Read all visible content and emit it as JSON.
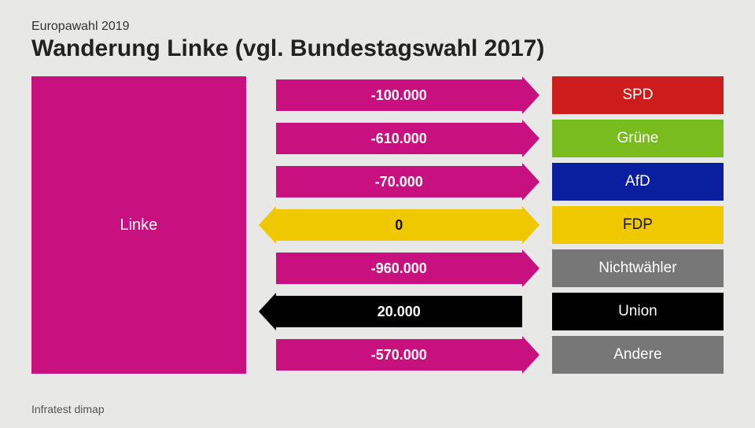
{
  "header": {
    "subtitle": "Europawahl 2019",
    "title": "Wanderung Linke (vgl. Bundestagswahl 2017)"
  },
  "credit": "Infratest dimap",
  "source": {
    "label": "Linke",
    "color": "#c9107f"
  },
  "flows": [
    {
      "value": -100000,
      "label": "-100.000",
      "arrow_color": "#c9107f",
      "text_color": "#ffffff",
      "target": {
        "label": "SPD",
        "color": "#cc1c1c",
        "text_color": "#ffffff"
      }
    },
    {
      "value": -610000,
      "label": "-610.000",
      "arrow_color": "#c9107f",
      "text_color": "#ffffff",
      "target": {
        "label": "Grüne",
        "color": "#78bc1e",
        "text_color": "#ffffff"
      }
    },
    {
      "value": -70000,
      "label": "-70.000",
      "arrow_color": "#c9107f",
      "text_color": "#ffffff",
      "target": {
        "label": "AfD",
        "color": "#0a1ea0",
        "text_color": "#ffffff"
      }
    },
    {
      "value": 0,
      "label": "0",
      "arrow_color": "#f0c800",
      "text_color": "#111111",
      "target": {
        "label": "FDP",
        "color": "#f0c800",
        "text_color": "#111111"
      }
    },
    {
      "value": -960000,
      "label": "-960.000",
      "arrow_color": "#c9107f",
      "text_color": "#ffffff",
      "target": {
        "label": "Nichtwähler",
        "color": "#777777",
        "text_color": "#ffffff"
      }
    },
    {
      "value": 20000,
      "label": "20.000",
      "arrow_color": "#000000",
      "text_color": "#ffffff",
      "target": {
        "label": "Union",
        "color": "#000000",
        "text_color": "#ffffff"
      }
    },
    {
      "value": -570000,
      "label": "-570.000",
      "arrow_color": "#c9107f",
      "text_color": "#ffffff",
      "target": {
        "label": "Andere",
        "color": "#777777",
        "text_color": "#ffffff"
      }
    }
  ]
}
